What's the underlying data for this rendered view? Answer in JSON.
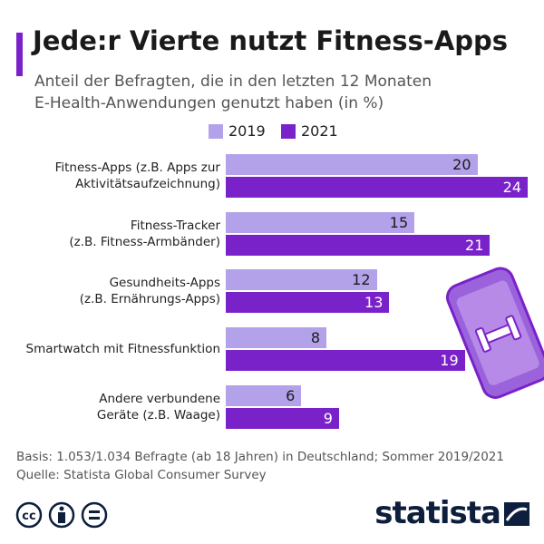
{
  "chart_data": {
    "type": "bar",
    "orientation": "horizontal",
    "title": "Jede:r Vierte nutzt Fitness-Apps",
    "subtitle": "Anteil der Befragten, die in den letzten 12 Monaten\nE-Health-Anwendungen genutzt haben (in %)",
    "categories": [
      "Fitness-Apps (z.B. Apps zur\nAktivitätsaufzeichnung)",
      "Fitness-Tracker\n(z.B. Fitness-Armbänder)",
      "Gesundheits-Apps\n(z.B. Ernährungs-Apps)",
      "Smartwatch mit Fitnessfunktion",
      "Andere verbundene\nGeräte (z.B. Waage)"
    ],
    "series": [
      {
        "name": "2019",
        "color": "#b3a2ea",
        "label_color": "#1a1a1a",
        "values": [
          20,
          15,
          12,
          8,
          6
        ]
      },
      {
        "name": "2021",
        "color": "#7a22c9",
        "label_color": "#ffffff",
        "values": [
          24,
          21,
          13,
          19,
          9
        ]
      }
    ],
    "notes": [
      "Basis: 1.053/1.034 Befragte (ab 18 Jahren) in Deutschland; Sommer 2019/2021",
      "Quelle: Statista Global Consumer Survey"
    ],
    "license": "cc",
    "brand": "statista"
  }
}
